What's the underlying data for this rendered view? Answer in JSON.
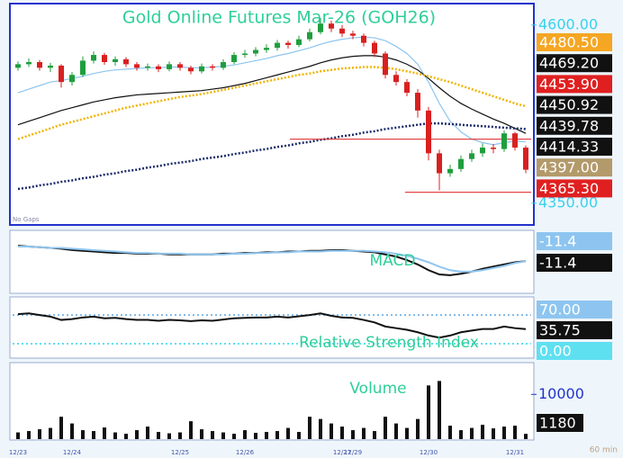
{
  "chart_data": [
    {
      "type": "candlestick",
      "title": "Gold Online Futures Mar-26 (GOH26)",
      "note": "No Gaps",
      "categories": [
        "12/23",
        null,
        null,
        null,
        null,
        "12/24",
        null,
        null,
        null,
        null,
        null,
        null,
        null,
        null,
        null,
        "12/25",
        null,
        null,
        null,
        null,
        null,
        "12/26",
        null,
        null,
        null,
        null,
        null,
        null,
        null,
        null,
        "12/27",
        "12/29",
        null,
        null,
        null,
        null,
        null,
        null,
        "12/30",
        null,
        null,
        null,
        null,
        null,
        null,
        null,
        "12/31",
        null
      ],
      "open": [
        4540,
        4545,
        4548,
        4540,
        4543,
        4520,
        4530,
        4550,
        4558,
        4548,
        4552,
        4545,
        4540,
        4542,
        4538,
        4545,
        4540,
        4535,
        4542,
        4540,
        4548,
        4558,
        4560,
        4565,
        4568,
        4575,
        4572,
        4580,
        4590,
        4602,
        4595,
        4588,
        4585,
        4575,
        4560,
        4530,
        4520,
        4505,
        4480,
        4420,
        4392,
        4398,
        4412,
        4420,
        4428,
        4426,
        4448,
        4428
      ],
      "high": [
        4549,
        4553,
        4551,
        4547,
        4545,
        4534,
        4556,
        4563,
        4561,
        4556,
        4555,
        4548,
        4546,
        4545,
        4549,
        4548,
        4543,
        4546,
        4545,
        4552,
        4562,
        4565,
        4569,
        4573,
        4579,
        4578,
        4585,
        4595,
        4610,
        4606,
        4600,
        4592,
        4588,
        4578,
        4563,
        4535,
        4524,
        4510,
        4485,
        4425,
        4404,
        4417,
        4425,
        4434,
        4433,
        4452,
        4450,
        4431
      ],
      "low": [
        4536,
        4541,
        4536,
        4534,
        4512,
        4515,
        4527,
        4546,
        4544,
        4543,
        4541,
        4536,
        4536,
        4534,
        4535,
        4536,
        4531,
        4532,
        4536,
        4537,
        4545,
        4554,
        4556,
        4561,
        4564,
        4567,
        4569,
        4577,
        4587,
        4590,
        4583,
        4580,
        4570,
        4555,
        4525,
        4515,
        4500,
        4470,
        4410,
        4368,
        4387,
        4394,
        4408,
        4415,
        4420,
        4422,
        4424,
        4392
      ],
      "close": [
        4545,
        4548,
        4540,
        4543,
        4520,
        4530,
        4550,
        4558,
        4548,
        4552,
        4545,
        4540,
        4542,
        4538,
        4545,
        4540,
        4535,
        4542,
        4540,
        4548,
        4558,
        4560,
        4565,
        4568,
        4575,
        4572,
        4580,
        4590,
        4602,
        4595,
        4588,
        4585,
        4575,
        4560,
        4530,
        4520,
        4505,
        4480,
        4420,
        4392,
        4398,
        4412,
        4420,
        4428,
        4426,
        4448,
        4428,
        4397
      ],
      "series": [
        {
          "color": "#8ec5f0",
          "style": "solid",
          "values": [
            4505,
            4510,
            4515,
            4520,
            4522,
            4525,
            4528,
            4532,
            4535,
            4537,
            4538,
            4539,
            4540,
            4540,
            4541,
            4541,
            4540,
            4540,
            4541,
            4542,
            4544,
            4547,
            4550,
            4553,
            4557,
            4560,
            4564,
            4568,
            4573,
            4577,
            4580,
            4582,
            4583,
            4582,
            4578,
            4570,
            4560,
            4545,
            4520,
            4490,
            4465,
            4450,
            4440,
            4435,
            4432,
            4435,
            4437,
            4436
          ]
        },
        {
          "color": "#111111",
          "style": "solid",
          "values": [
            4460,
            4465,
            4470,
            4475,
            4480,
            4484,
            4488,
            4492,
            4495,
            4498,
            4500,
            4502,
            4503,
            4504,
            4505,
            4506,
            4507,
            4508,
            4510,
            4512,
            4515,
            4518,
            4522,
            4526,
            4530,
            4534,
            4538,
            4542,
            4547,
            4551,
            4554,
            4556,
            4557,
            4557,
            4555,
            4551,
            4545,
            4537,
            4525,
            4512,
            4500,
            4490,
            4482,
            4475,
            4468,
            4462,
            4455,
            4448
          ]
        },
        {
          "color": "#f0b400",
          "style": "dotted",
          "values": [
            4440,
            4445,
            4450,
            4455,
            4460,
            4464,
            4468,
            4472,
            4476,
            4480,
            4484,
            4487,
            4490,
            4493,
            4496,
            4499,
            4501,
            4503,
            4506,
            4509,
            4512,
            4515,
            4518,
            4521,
            4524,
            4527,
            4530,
            4532,
            4535,
            4537,
            4539,
            4540,
            4541,
            4541,
            4540,
            4538,
            4535,
            4532,
            4528,
            4524,
            4520,
            4515,
            4510,
            4505,
            4500,
            4495,
            4490,
            4486
          ]
        },
        {
          "color": "#1a2a6a",
          "style": "dotted",
          "values": [
            4370,
            4372,
            4375,
            4377,
            4380,
            4382,
            4385,
            4387,
            4390,
            4392,
            4395,
            4397,
            4400,
            4402,
            4405,
            4407,
            4409,
            4412,
            4414,
            4416,
            4419,
            4421,
            4424,
            4426,
            4429,
            4431,
            4434,
            4436,
            4439,
            4441,
            4444,
            4446,
            4449,
            4451,
            4454,
            4456,
            4458,
            4460,
            4462,
            4462,
            4461,
            4460,
            4459,
            4458,
            4457,
            4456,
            4455,
            4454
          ]
        }
      ],
      "price_labels": [
        {
          "value": 4480.5,
          "label": "4480.50",
          "color": "#f5a623"
        },
        {
          "value": 4469.2,
          "label": "4469.20",
          "color": "#111111"
        },
        {
          "value": 4453.9,
          "label": "4453.90",
          "color": "#e02020"
        },
        {
          "value": 4450.92,
          "label": "4450.92",
          "color": "#111111"
        },
        {
          "value": 4439.78,
          "label": "4439.78",
          "color": "#111111"
        },
        {
          "value": 4414.33,
          "label": "4414.33",
          "color": "#111111"
        },
        {
          "value": 4397,
          "label": "4397.00",
          "color": "#b39a6a"
        },
        {
          "value": 4365.3,
          "label": "4365.30",
          "color": "#e02020"
        }
      ],
      "ylim": [
        4322,
        4625
      ],
      "yticks": [
        {
          "value": 4600,
          "label": "4600.00"
        },
        {
          "value": 4350,
          "label": "4350.00"
        }
      ],
      "up_color": "#1f9e3e",
      "down_color": "#d92020"
    },
    {
      "type": "line",
      "title": "MACD",
      "ylim": [
        -55,
        29
      ],
      "series": [
        {
          "color": "#111111",
          "values": [
            10,
            9,
            8,
            7,
            6,
            4,
            3,
            2,
            1,
            0,
            0,
            -1,
            -1,
            -1,
            -2,
            -2,
            -2,
            -2,
            -2,
            -1,
            -1,
            0,
            0,
            1,
            1,
            2,
            2,
            3,
            3,
            4,
            4,
            3,
            2,
            1,
            -2,
            -5,
            -10,
            -16,
            -24,
            -30,
            -31,
            -29,
            -26,
            -22,
            -19,
            -16,
            -13,
            -11.4
          ]
        },
        {
          "color": "#8ec5f0",
          "values": [
            9,
            9,
            8,
            7,
            7,
            6,
            5,
            4,
            3,
            2,
            1,
            0,
            0,
            -1,
            -1,
            -1,
            -2,
            -2,
            -2,
            -2,
            -1,
            -1,
            0,
            0,
            1,
            1,
            2,
            2,
            2,
            3,
            3,
            3,
            3,
            2,
            1,
            -1,
            -4,
            -8,
            -13,
            -19,
            -24,
            -26,
            -26,
            -24,
            -21,
            -18,
            -14,
            -11.4
          ]
        }
      ],
      "price_labels": [
        {
          "value": -11.4,
          "label": "-11.4",
          "color": "#8ec5f0"
        },
        {
          "value": -11.4,
          "label": "-11.4",
          "color": "#111111"
        }
      ]
    },
    {
      "type": "line",
      "title": "Relative Strength Index",
      "ylim": [
        -35,
        114
      ],
      "series": [
        {
          "color": "#111111",
          "values": [
            72,
            74,
            70,
            66,
            58,
            60,
            64,
            66,
            62,
            63,
            60,
            58,
            58,
            56,
            58,
            57,
            55,
            57,
            56,
            59,
            62,
            63,
            64,
            64,
            66,
            64,
            67,
            70,
            74,
            68,
            64,
            63,
            58,
            52,
            42,
            38,
            34,
            28,
            20,
            15,
            20,
            28,
            32,
            36,
            36,
            42,
            38,
            35.75
          ]
        }
      ],
      "price_labels": [
        {
          "value": 70,
          "label": "70.00",
          "color": "#8ec5f0"
        },
        {
          "value": 35.75,
          "label": "35.75",
          "color": "#111111"
        },
        {
          "value": 0,
          "label": "0.00",
          "color": "#5fe0f0"
        }
      ]
    },
    {
      "type": "bar",
      "title": "Volume",
      "ylim": [
        0,
        16700
      ],
      "yticks": [
        10000
      ],
      "color": "#111111",
      "values": [
        1500,
        1800,
        2200,
        2500,
        5000,
        3500,
        2000,
        1800,
        2600,
        1500,
        1200,
        2000,
        2800,
        1600,
        1300,
        1500,
        4000,
        2200,
        1800,
        1500,
        1200,
        2000,
        1400,
        1600,
        1800,
        2500,
        1600,
        5000,
        4500,
        3500,
        2800,
        2000,
        2500,
        1800,
        5000,
        3500,
        2500,
        4500,
        12000,
        13000,
        3000,
        2000,
        2500,
        3200,
        2400,
        2800,
        3000,
        1180
      ],
      "price_labels": [
        {
          "value": 1180,
          "label": "1180",
          "color": "#111111"
        }
      ],
      "footer": "60 min"
    }
  ]
}
